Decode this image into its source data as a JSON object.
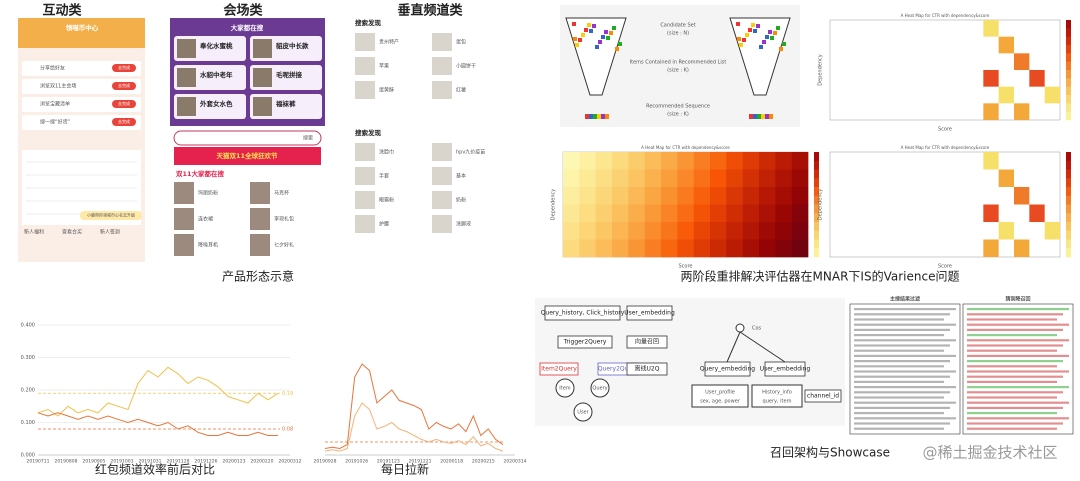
{
  "sections": {
    "interactive": "互动类",
    "venue": "会场类",
    "vertical": "垂直频道类",
    "product_caption": "产品形态示意",
    "rerank_caption": "两阶段重排解决评估器在MNAR下IS的Varience问题",
    "chart1_caption": "红包频道效率前后对比",
    "chart2_caption": "每日拉新",
    "recall_caption": "召回架构与Showcase",
    "watermark": "@稀土掘金技术社区"
  },
  "phone1": {
    "header": "领喵币中心",
    "tasks": [
      "分享给好友",
      "浏览双11主会场",
      "浏览宝藏清单",
      "搜一搜“好货”"
    ],
    "action": "去完成",
    "tip": "小鹿带你领喵币心名去升级",
    "tabs": [
      "新人福利",
      "查看合买",
      "新人签到"
    ]
  },
  "phone2": {
    "banner": "大家都在搜",
    "tiles": [
      "奉化水蜜桃",
      "貂皮中长款",
      "水貂中老年",
      "毛呢拼接",
      "外套女水色",
      "福袜裤"
    ],
    "search": "搜索",
    "promo": "天猫双11全球狂欢节",
    "list_title": "双11大家都在搜",
    "list": [
      "玛丽奶粉",
      "马克杯",
      "连衣裙",
      "李现礼包",
      "降噪耳机",
      "七夕好礼"
    ]
  },
  "phone3": {
    "section1": "搜索发现",
    "items1": [
      "贵州特产",
      "蛋包",
      "苹果",
      "小圆饼干",
      "蛋黄酥",
      "红薯"
    ],
    "section2": "搜索发现",
    "items2": [
      "洗脸巾",
      "hpv九价疫苗",
      "手套",
      "基本",
      "眼霜粉",
      "奶粉",
      "护腰",
      "洗脚液"
    ]
  },
  "rerank": {
    "candidate": "Candidate Set",
    "candidate_size": "(size : N)",
    "contained": "Items Contained in Recommended List",
    "contained_size": "(size : K)",
    "sequence": "Recommended Sequence",
    "sequence_size": "(size : K)",
    "heatmap_title": "A Heat Map for CTR with dependency&score",
    "x_axis": "Score",
    "y_axis": "Dependency"
  },
  "charts": [
    {
      "type": "line",
      "ylim": [
        0,
        0.4
      ],
      "yticks": [
        {
          "value": 0,
          "label": "0.000"
        },
        {
          "value": 0.1,
          "label": "0.100"
        },
        {
          "value": 0.2,
          "label": "0.200"
        },
        {
          "value": 0.3,
          "label": "0.300"
        },
        {
          "value": 0.4,
          "label": "0.400"
        }
      ],
      "x_labels": [
        "20190711",
        "20190808",
        "20190905",
        "20191003",
        "20191031",
        "20191128",
        "20191226",
        "20200123",
        "20200220",
        "20200312"
      ],
      "series": [
        {
          "color": "#f2c04a",
          "values": [
            0.13,
            0.14,
            0.12,
            0.15,
            0.13,
            0.14,
            0.13,
            0.16,
            0.15,
            0.14,
            0.22,
            0.26,
            0.24,
            0.27,
            0.25,
            0.22,
            0.24,
            0.23,
            0.21,
            0.18,
            0.17,
            0.16,
            0.19,
            0.17,
            0.19
          ]
        },
        {
          "color": "#e8743b",
          "values": [
            0.13,
            0.12,
            0.13,
            0.12,
            0.11,
            0.12,
            0.11,
            0.12,
            0.11,
            0.1,
            0.11,
            0.1,
            0.09,
            0.1,
            0.08,
            0.09,
            0.07,
            0.06,
            0.06,
            0.07,
            0.06,
            0.06,
            0.07,
            0.06,
            0.06
          ]
        }
      ],
      "refs": [
        {
          "value": 0.19,
          "label": "0.19",
          "color": "#f2c04a"
        },
        {
          "value": 0.08,
          "label": "0.08",
          "color": "#e8743b"
        }
      ]
    },
    {
      "type": "line",
      "ylim": [
        0,
        100
      ],
      "x_labels": [
        "20190928",
        "20191026",
        "20191123",
        "20191221",
        "20200118",
        "20200215",
        "20200314"
      ],
      "series": [
        {
          "color": "#e8743b",
          "values": [
            5,
            6,
            5,
            8,
            60,
            70,
            65,
            40,
            45,
            50,
            42,
            40,
            38,
            35,
            20,
            25,
            22,
            20,
            24,
            18,
            30,
            15,
            20,
            12,
            8
          ]
        },
        {
          "color": "#f5b27a",
          "values": [
            3,
            4,
            3,
            5,
            30,
            40,
            35,
            20,
            22,
            25,
            20,
            18,
            15,
            12,
            10,
            12,
            10,
            9,
            11,
            8,
            14,
            7,
            9,
            5,
            3
          ]
        }
      ],
      "refs": [
        {
          "value": 10,
          "color": "#e8743b"
        }
      ]
    }
  ],
  "recall": {
    "query_click": "Query_history, Click_history",
    "user_emb": "User_embedding",
    "trigger": "Trigger2Query",
    "item2query": "Item2Query",
    "query2query": "Query2Query",
    "vector": "向量召回",
    "offline": "离线U2Q",
    "cos": "Cos",
    "query_emb": "Query_embedding",
    "user_emb2": "User_embedding",
    "profile": "User_profile",
    "profile_fields": "sex, age, power",
    "history": "History_info",
    "history_fields": "query, item",
    "channel": "channel_id",
    "item": "Item",
    "query": "Query",
    "user": "User",
    "panel1": "主搜结果过滤",
    "panel2": "猜到降召回"
  }
}
